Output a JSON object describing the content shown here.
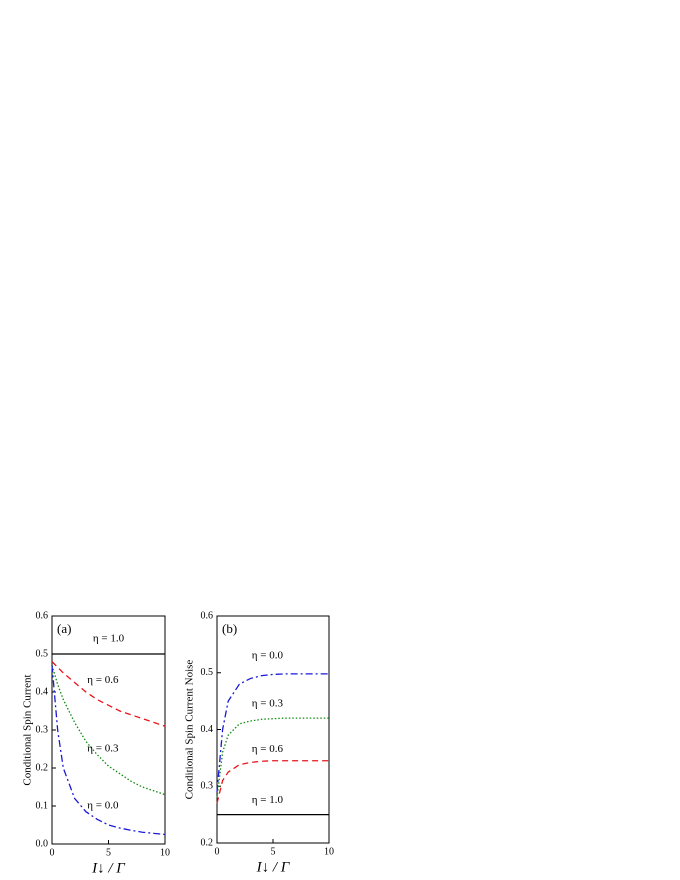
{
  "chart_data": [
    {
      "type": "line",
      "panel_label": "(a)",
      "xlabel": "I↓ / Γ",
      "ylabel": "Conditional Spin Current",
      "xlim": [
        0,
        10
      ],
      "xticks": [
        0,
        5,
        10
      ],
      "ylim": [
        0,
        0.6
      ],
      "yticks": [
        {
          "value": 0,
          "label": "0.0"
        },
        0.1,
        0.2,
        0.3,
        0.4,
        0.5,
        0.6
      ],
      "series": [
        {
          "name": "η = 1.0",
          "color": "#000000",
          "style": "solid",
          "x": [
            0,
            10
          ],
          "values": [
            0.5,
            0.5
          ]
        },
        {
          "name": "η = 0.6",
          "color": "#e8141b",
          "style": "dashed",
          "x": [
            0,
            0.5,
            1,
            2,
            3,
            4,
            5,
            6,
            7,
            8,
            9,
            10
          ],
          "values": [
            0.48,
            0.465,
            0.45,
            0.425,
            0.4,
            0.38,
            0.365,
            0.35,
            0.34,
            0.33,
            0.32,
            0.31
          ]
        },
        {
          "name": "η = 0.3",
          "color": "#118a11",
          "style": "dotted",
          "x": [
            0,
            0.5,
            1,
            2,
            3,
            4,
            5,
            6,
            7,
            8,
            9,
            10
          ],
          "values": [
            0.47,
            0.42,
            0.38,
            0.32,
            0.27,
            0.235,
            0.205,
            0.185,
            0.165,
            0.15,
            0.14,
            0.13
          ]
        },
        {
          "name": "η = 0.0",
          "color": "#1a1ad6",
          "style": "dashdot",
          "x": [
            0,
            0.5,
            1,
            2,
            3,
            4,
            5,
            6,
            7,
            8,
            9,
            10
          ],
          "values": [
            0.47,
            0.3,
            0.2,
            0.12,
            0.085,
            0.065,
            0.05,
            0.042,
            0.036,
            0.031,
            0.028,
            0.025
          ]
        }
      ]
    },
    {
      "type": "line",
      "panel_label": "(b)",
      "xlabel": "I↓ / Γ",
      "ylabel": "Conditional Spin Current Noise",
      "xlim": [
        0,
        10
      ],
      "xticks": [
        0,
        5,
        10
      ],
      "ylim": [
        0.2,
        0.6
      ],
      "yticks": [
        0.2,
        0.3,
        0.4,
        0.5,
        0.6
      ],
      "series": [
        {
          "name": "η = 0.0",
          "color": "#1a1ad6",
          "style": "dashdot",
          "x": [
            0,
            0.5,
            1,
            2,
            3,
            4,
            5,
            6,
            7,
            8,
            9,
            10
          ],
          "values": [
            0.29,
            0.4,
            0.45,
            0.48,
            0.49,
            0.495,
            0.497,
            0.498,
            0.498,
            0.498,
            0.498,
            0.498
          ]
        },
        {
          "name": "η = 0.3",
          "color": "#118a11",
          "style": "dotted",
          "x": [
            0,
            0.5,
            1,
            2,
            3,
            4,
            5,
            6,
            7,
            8,
            9,
            10
          ],
          "values": [
            0.28,
            0.36,
            0.39,
            0.41,
            0.415,
            0.418,
            0.419,
            0.42,
            0.42,
            0.42,
            0.42,
            0.42
          ]
        },
        {
          "name": "η = 0.6",
          "color": "#e8141b",
          "style": "dashed",
          "x": [
            0,
            0.5,
            1,
            2,
            3,
            4,
            5,
            6,
            7,
            8,
            9,
            10
          ],
          "values": [
            0.27,
            0.31,
            0.325,
            0.338,
            0.342,
            0.344,
            0.345,
            0.345,
            0.345,
            0.345,
            0.345,
            0.345
          ]
        },
        {
          "name": "η = 1.0",
          "color": "#000000",
          "style": "solid",
          "x": [
            0,
            10
          ],
          "values": [
            0.25,
            0.25
          ]
        }
      ]
    }
  ]
}
